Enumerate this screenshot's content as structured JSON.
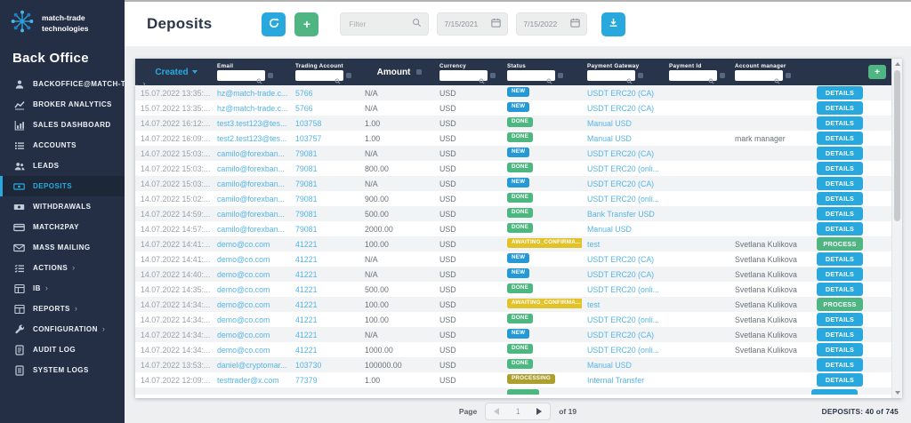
{
  "brand": {
    "name_line1": "match-trade",
    "name_line2": "technologies",
    "portal": "Back Office"
  },
  "sidebar": {
    "items": [
      {
        "label": "BACKOFFICE@MATCH-TR...",
        "icon": "user-icon",
        "chevron": true,
        "active": false
      },
      {
        "label": "BROKER ANALYTICS",
        "icon": "line-chart-icon",
        "chevron": false,
        "active": false
      },
      {
        "label": "SALES DASHBOARD",
        "icon": "bar-chart-icon",
        "chevron": false,
        "active": false
      },
      {
        "label": "ACCOUNTS",
        "icon": "list-icon",
        "chevron": false,
        "active": false
      },
      {
        "label": "LEADS",
        "icon": "users-icon",
        "chevron": false,
        "active": false
      },
      {
        "label": "DEPOSITS",
        "icon": "banknote-icon",
        "chevron": false,
        "active": true
      },
      {
        "label": "WITHDRAWALS",
        "icon": "cash-out-icon",
        "chevron": false,
        "active": false
      },
      {
        "label": "MATCH2PAY",
        "icon": "card-icon",
        "chevron": false,
        "active": false
      },
      {
        "label": "MASS MAILING",
        "icon": "mail-icon",
        "chevron": false,
        "active": false
      },
      {
        "label": "ACTIONS",
        "icon": "checklist-icon",
        "chevron": true,
        "active": false
      },
      {
        "label": "IB",
        "icon": "table-icon",
        "chevron": true,
        "active": false
      },
      {
        "label": "REPORTS",
        "icon": "report-icon",
        "chevron": true,
        "active": false
      },
      {
        "label": "CONFIGURATION",
        "icon": "wrench-icon",
        "chevron": true,
        "active": false
      },
      {
        "label": "AUDIT LOG",
        "icon": "audit-log-icon",
        "chevron": false,
        "active": false
      },
      {
        "label": "SYSTEM LOGS",
        "icon": "system-logs-icon",
        "chevron": false,
        "active": false
      }
    ]
  },
  "topbar": {
    "title": "Deposits",
    "add_label": "+",
    "filter_placeholder": "Filter",
    "date_from": "7/15/2021",
    "date_to": "7/15/2022"
  },
  "table": {
    "header_add_label": "+",
    "columns": {
      "created": "Created",
      "email": "Email",
      "trading_account": "Trading Account",
      "amount": "Amount",
      "currency": "Currency",
      "status": "Status",
      "payment_gateway": "Payment Gateway",
      "payment_id": "Payment Id",
      "account_manager": "Account manager"
    },
    "rows": [
      {
        "created": "15.07.2022 13:35:...",
        "email": "hz@match-trade.c...",
        "trading_account": "5766",
        "amount": "N/A",
        "currency": "USD",
        "status": "NEW",
        "payment_gateway": "USDT ERC20 (CA)",
        "payment_id": "",
        "account_manager": "",
        "action": "DETAILS"
      },
      {
        "created": "15.07.2022 13:35:...",
        "email": "hz@match-trade.c...",
        "trading_account": "5766",
        "amount": "N/A",
        "currency": "USD",
        "status": "NEW",
        "payment_gateway": "USDT ERC20 (CA)",
        "payment_id": "",
        "account_manager": "",
        "action": "DETAILS"
      },
      {
        "created": "14.07.2022 16:12:...",
        "email": "test3.test123@tes...",
        "trading_account": "103758",
        "amount": "1.00",
        "currency": "USD",
        "status": "DONE",
        "payment_gateway": "Manual USD",
        "payment_id": "",
        "account_manager": "",
        "action": "DETAILS"
      },
      {
        "created": "14.07.2022 16:09:...",
        "email": "test2.test123@tes...",
        "trading_account": "103757",
        "amount": "1.00",
        "currency": "USD",
        "status": "DONE",
        "payment_gateway": "Manual USD",
        "payment_id": "",
        "account_manager": "mark manager",
        "action": "DETAILS"
      },
      {
        "created": "14.07.2022 15:03:...",
        "email": "camilo@forexban...",
        "trading_account": "79081",
        "amount": "N/A",
        "currency": "USD",
        "status": "NEW",
        "payment_gateway": "USDT ERC20 (CA)",
        "payment_id": "",
        "account_manager": "",
        "action": "DETAILS"
      },
      {
        "created": "14.07.2022 15:03:...",
        "email": "camilo@forexban...",
        "trading_account": "79081",
        "amount": "800.00",
        "currency": "USD",
        "status": "DONE",
        "payment_gateway": "USDT ERC20 (onli...",
        "payment_id": "",
        "account_manager": "",
        "action": "DETAILS"
      },
      {
        "created": "14.07.2022 15:03:...",
        "email": "camilo@forexban...",
        "trading_account": "79081",
        "amount": "N/A",
        "currency": "USD",
        "status": "NEW",
        "payment_gateway": "USDT ERC20 (CA)",
        "payment_id": "",
        "account_manager": "",
        "action": "DETAILS"
      },
      {
        "created": "14.07.2022 15:02:...",
        "email": "camilo@forexban...",
        "trading_account": "79081",
        "amount": "900.00",
        "currency": "USD",
        "status": "DONE",
        "payment_gateway": "USDT ERC20 (onli...",
        "payment_id": "",
        "account_manager": "",
        "action": "DETAILS"
      },
      {
        "created": "14.07.2022 14:59:...",
        "email": "camilo@forexban...",
        "trading_account": "79081",
        "amount": "500.00",
        "currency": "USD",
        "status": "DONE",
        "payment_gateway": "Bank Transfer USD",
        "payment_id": "",
        "account_manager": "",
        "action": "DETAILS"
      },
      {
        "created": "14.07.2022 14:57:...",
        "email": "camilo@forexban...",
        "trading_account": "79081",
        "amount": "2000.00",
        "currency": "USD",
        "status": "DONE",
        "payment_gateway": "Manual USD",
        "payment_id": "",
        "account_manager": "",
        "action": "DETAILS"
      },
      {
        "created": "14.07.2022 14:41:...",
        "email": "demo@co.com",
        "trading_account": "41221",
        "amount": "100.00",
        "currency": "USD",
        "status": "AWAITING_CONFIRMA...",
        "payment_gateway": "test",
        "payment_id": "",
        "account_manager": "Svetlana Kulikova",
        "action": "PROCESS"
      },
      {
        "created": "14.07.2022 14:41:...",
        "email": "demo@co.com",
        "trading_account": "41221",
        "amount": "N/A",
        "currency": "USD",
        "status": "NEW",
        "payment_gateway": "USDT ERC20 (CA)",
        "payment_id": "",
        "account_manager": "Svetlana Kulikova",
        "action": "DETAILS"
      },
      {
        "created": "14.07.2022 14:40:...",
        "email": "demo@co.com",
        "trading_account": "41221",
        "amount": "N/A",
        "currency": "USD",
        "status": "NEW",
        "payment_gateway": "USDT ERC20 (CA)",
        "payment_id": "",
        "account_manager": "Svetlana Kulikova",
        "action": "DETAILS"
      },
      {
        "created": "14.07.2022 14:35:...",
        "email": "demo@co.com",
        "trading_account": "41221",
        "amount": "500.00",
        "currency": "USD",
        "status": "DONE",
        "payment_gateway": "USDT ERC20 (onli...",
        "payment_id": "",
        "account_manager": "Svetlana Kulikova",
        "action": "DETAILS"
      },
      {
        "created": "14.07.2022 14:34:...",
        "email": "demo@co.com",
        "trading_account": "41221",
        "amount": "100.00",
        "currency": "USD",
        "status": "AWAITING_CONFIRMA...",
        "payment_gateway": "test",
        "payment_id": "",
        "account_manager": "Svetlana Kulikova",
        "action": "PROCESS"
      },
      {
        "created": "14.07.2022 14:34:...",
        "email": "demo@co.com",
        "trading_account": "41221",
        "amount": "100.00",
        "currency": "USD",
        "status": "DONE",
        "payment_gateway": "USDT ERC20 (onli...",
        "payment_id": "",
        "account_manager": "Svetlana Kulikova",
        "action": "DETAILS"
      },
      {
        "created": "14.07.2022 14:34:...",
        "email": "demo@co.com",
        "trading_account": "41221",
        "amount": "N/A",
        "currency": "USD",
        "status": "NEW",
        "payment_gateway": "USDT ERC20 (CA)",
        "payment_id": "",
        "account_manager": "Svetlana Kulikova",
        "action": "DETAILS"
      },
      {
        "created": "14.07.2022 14:34:...",
        "email": "demo@co.com",
        "trading_account": "41221",
        "amount": "1000.00",
        "currency": "USD",
        "status": "DONE",
        "payment_gateway": "USDT ERC20 (onli...",
        "payment_id": "",
        "account_manager": "Svetlana Kulikova",
        "action": "DETAILS"
      },
      {
        "created": "14.07.2022 13:53:...",
        "email": "daniel@cryptomar...",
        "trading_account": "103730",
        "amount": "100000.00",
        "currency": "USD",
        "status": "DONE",
        "payment_gateway": "Manual USD",
        "payment_id": "",
        "account_manager": "",
        "action": "DETAILS"
      },
      {
        "created": "14.07.2022 12:09:...",
        "email": "testtrader@x.com",
        "trading_account": "77379",
        "amount": "1.00",
        "currency": "USD",
        "status": "PROCESSING",
        "payment_gateway": "Internal Transfer",
        "payment_id": "",
        "account_manager": "",
        "action": "DETAILS"
      }
    ]
  },
  "footer": {
    "page_label": "Page",
    "current_page": "1",
    "of_label": "of 19",
    "total": "DEPOSITS: 40 of 745"
  },
  "colors": {
    "accent_blue": "#29a8dd",
    "green": "#4eb583",
    "status_new": "#2499d6",
    "status_done": "#4cb87f",
    "status_awaiting": "#e2c229",
    "status_processing": "#ac9f2e"
  }
}
